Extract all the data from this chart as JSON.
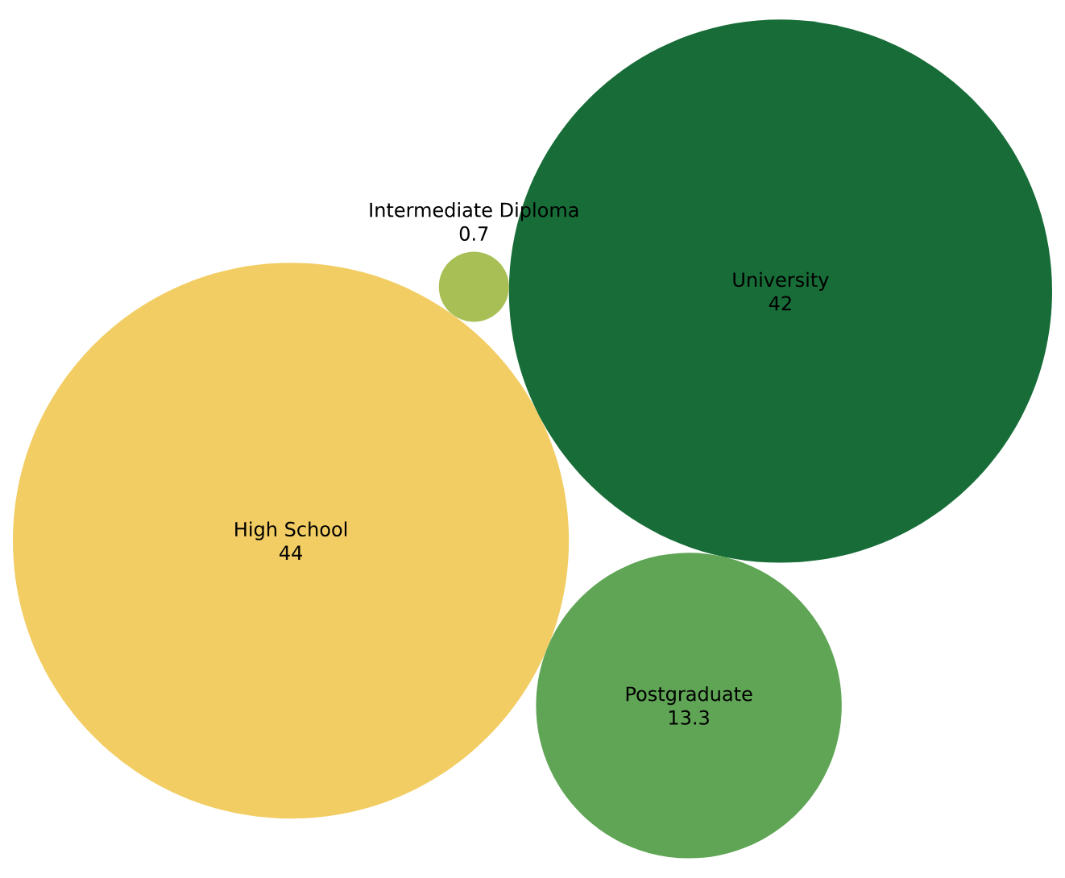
{
  "chart_data": {
    "type": "other",
    "categories": [
      "High School",
      "University",
      "Postgraduate",
      "Intermediate Diploma"
    ],
    "values": [
      44,
      42,
      13.3,
      0.7
    ],
    "colors": [
      "#f2cd63",
      "#176c37",
      "#5fa555",
      "#a8bf55"
    ],
    "data_labels": true
  }
}
